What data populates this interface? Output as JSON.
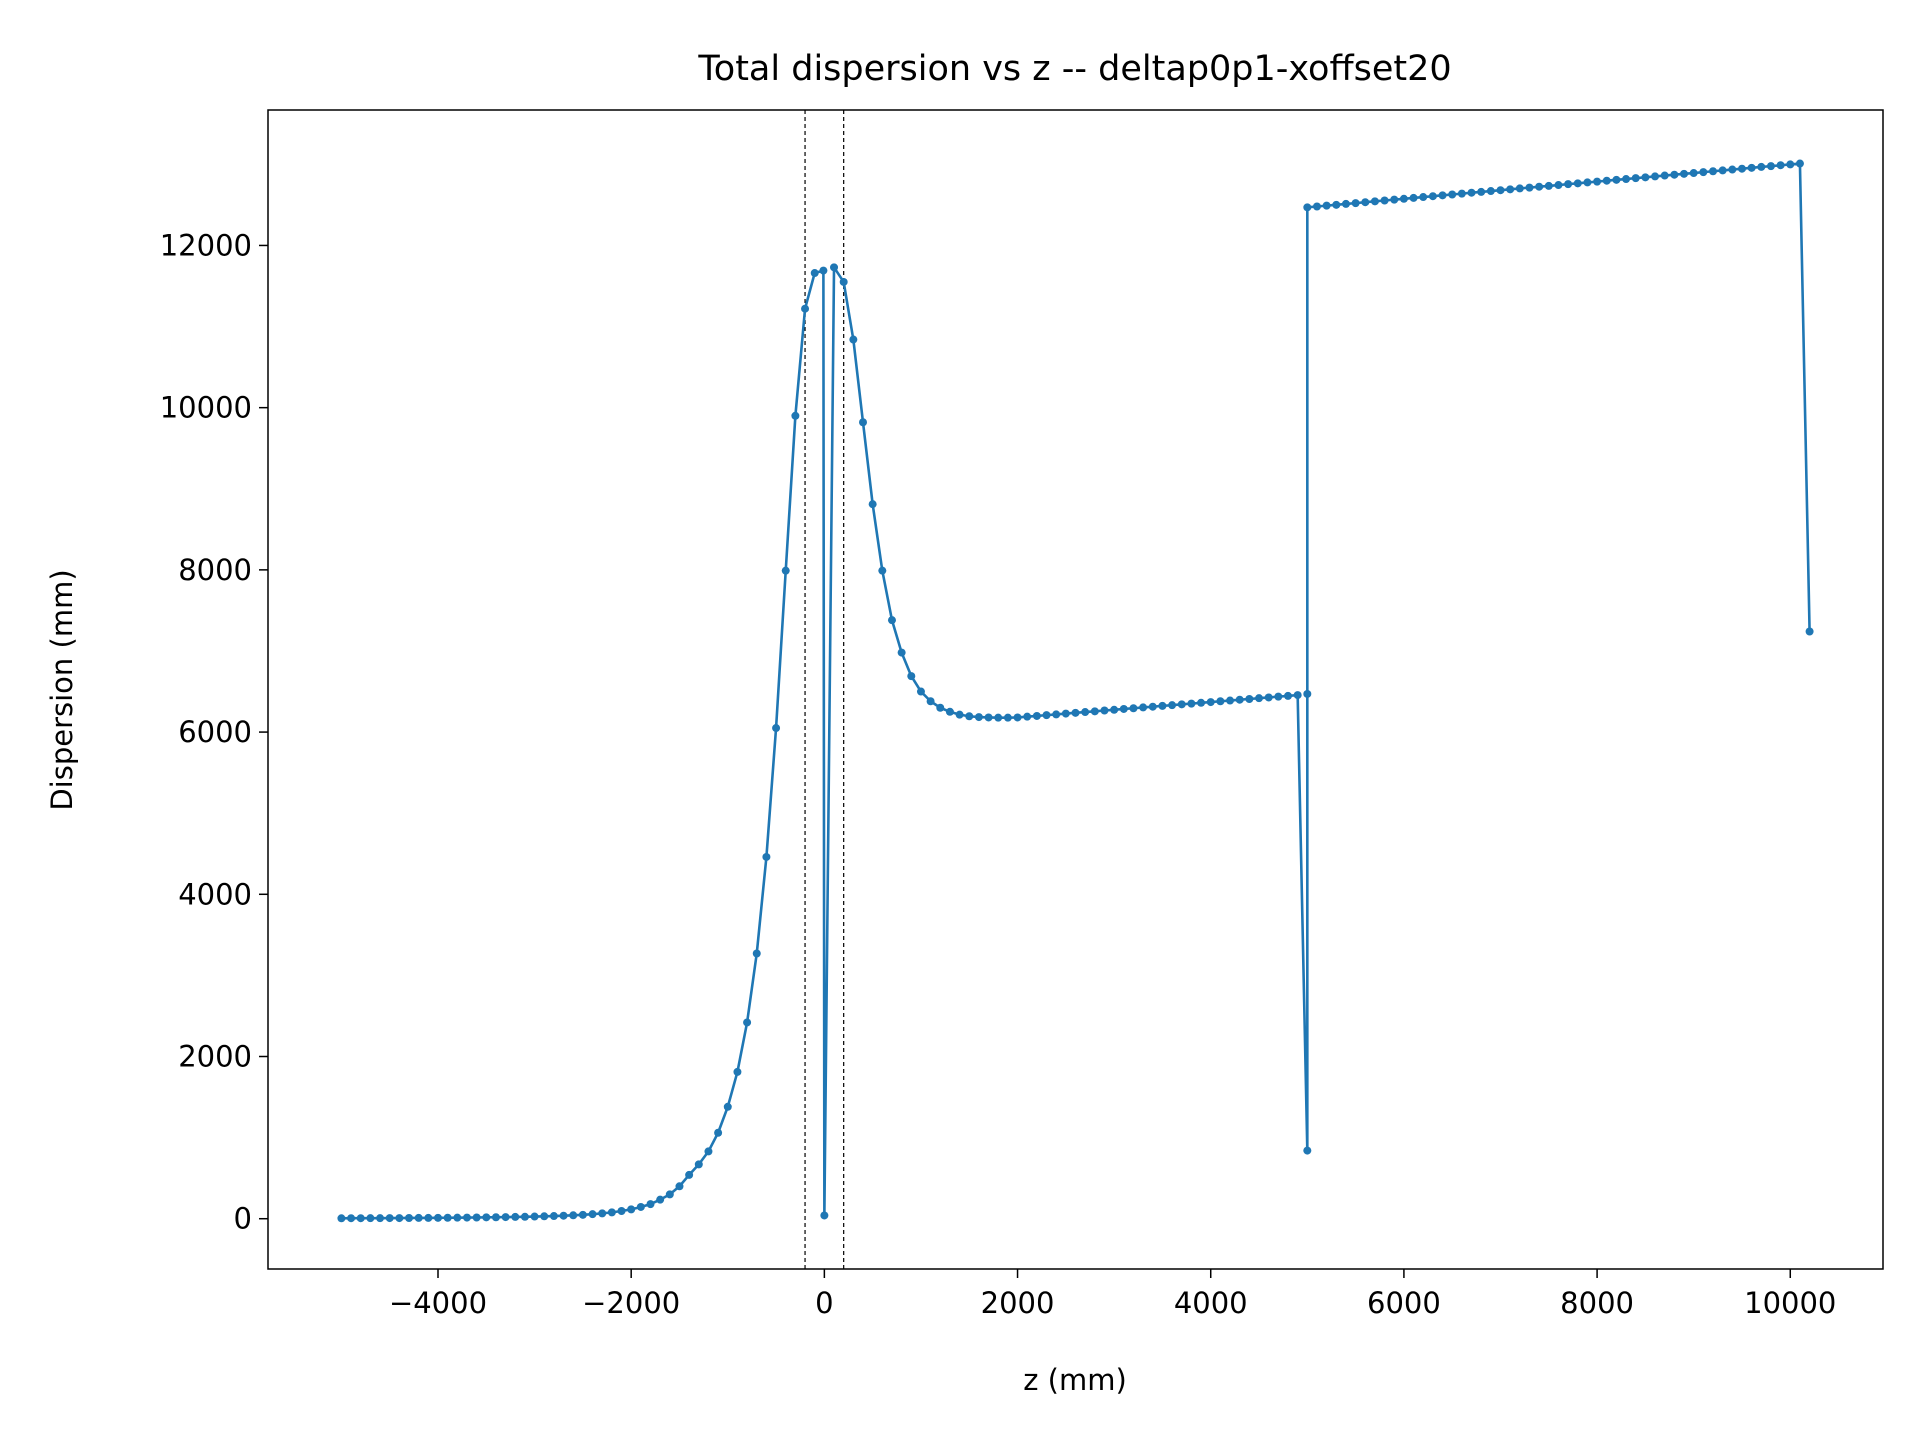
{
  "chart_data": {
    "type": "line",
    "title": "Total dispersion vs z -- deltap0p1-xoffset20",
    "x_label": "z (mm)",
    "y_label": "Dispersion (mm)",
    "x": [
      -5000,
      -4900,
      -4800,
      -4700,
      -4600,
      -4500,
      -4400,
      -4300,
      -4200,
      -4100,
      -4000,
      -3900,
      -3800,
      -3700,
      -3600,
      -3500,
      -3400,
      -3300,
      -3200,
      -3100,
      -3000,
      -2900,
      -2800,
      -2700,
      -2600,
      -2500,
      -2400,
      -2300,
      -2200,
      -2100,
      -2000,
      -1900,
      -1800,
      -1700,
      -1600,
      -1500,
      -1400,
      -1300,
      -1200,
      -1100,
      -1000,
      -900,
      -800,
      -700,
      -600,
      -500,
      -400,
      -300,
      -200,
      -100,
      -10,
      0,
      100,
      200,
      300,
      400,
      500,
      600,
      700,
      800,
      900,
      1000,
      1100,
      1200,
      1300,
      1400,
      1500,
      1600,
      1700,
      1800,
      1900,
      2000,
      2100,
      2200,
      2300,
      2400,
      2500,
      2600,
      2700,
      2800,
      2900,
      3000,
      3100,
      3200,
      3300,
      3400,
      3500,
      3600,
      3700,
      3800,
      3900,
      4000,
      4100,
      4200,
      4300,
      4400,
      4500,
      4600,
      4700,
      4800,
      4900,
      5000,
      5000,
      5000,
      5100,
      5200,
      5300,
      5400,
      5500,
      5600,
      5700,
      5800,
      5900,
      6000,
      6100,
      6200,
      6300,
      6400,
      6500,
      6600,
      6700,
      6800,
      6900,
      7000,
      7100,
      7200,
      7300,
      7400,
      7500,
      7600,
      7700,
      7800,
      7900,
      8000,
      8100,
      8200,
      8300,
      8400,
      8500,
      8600,
      8700,
      8800,
      8900,
      9000,
      9100,
      9200,
      9300,
      9400,
      9500,
      9600,
      9700,
      9800,
      9900,
      10000,
      10100,
      10200
    ],
    "series": [
      {
        "color": "#1f77b4",
        "values": [
          5,
          6,
          6,
          7,
          7,
          8,
          8,
          9,
          10,
          10,
          11,
          12,
          13,
          14,
          15,
          17,
          18,
          20,
          22,
          24,
          27,
          30,
          33,
          37,
          42,
          48,
          56,
          66,
          78,
          95,
          115,
          145,
          180,
          235,
          300,
          400,
          540,
          670,
          830,
          1060,
          1380,
          1810,
          2420,
          3270,
          4460,
          6050,
          7990,
          9900,
          11220,
          11660,
          11690,
          40,
          11730,
          11550,
          10840,
          9820,
          8810,
          7990,
          7380,
          6980,
          6690,
          6500,
          6380,
          6300,
          6250,
          6215,
          6195,
          6185,
          6180,
          6178,
          6178,
          6180,
          6190,
          6199,
          6209,
          6218,
          6228,
          6237,
          6247,
          6256,
          6266,
          6275,
          6285,
          6294,
          6304,
          6313,
          6323,
          6332,
          6342,
          6351,
          6361,
          6370,
          6380,
          6389,
          6399,
          6408,
          6418,
          6427,
          6437,
          6446,
          6456,
          840,
          6470,
          12470,
          12480,
          12491,
          12501,
          12512,
          12522,
          12533,
          12544,
          12554,
          12565,
          12575,
          12586,
          12597,
          12607,
          12618,
          12628,
          12639,
          12650,
          12660,
          12671,
          12681,
          12692,
          12703,
          12713,
          12724,
          12734,
          12745,
          12756,
          12766,
          12777,
          12787,
          12798,
          12809,
          12819,
          12830,
          12840,
          12851,
          12862,
          12872,
          12883,
          12893,
          12904,
          12915,
          12925,
          12936,
          12946,
          12957,
          12968,
          12978,
          12989,
          12999,
          13010,
          7240
        ]
      }
    ],
    "vlines": [
      -200,
      200
    ],
    "xlim": [
      -5760,
      10960
    ],
    "ylim": [
      -620,
      13670
    ],
    "xticks": [
      {
        "value": -4000,
        "label": "−4000"
      },
      {
        "value": -2000,
        "label": "−2000"
      },
      0,
      2000,
      4000,
      6000,
      8000,
      10000
    ],
    "yticks": [
      0,
      2000,
      4000,
      6000,
      8000,
      10000,
      12000
    ]
  }
}
